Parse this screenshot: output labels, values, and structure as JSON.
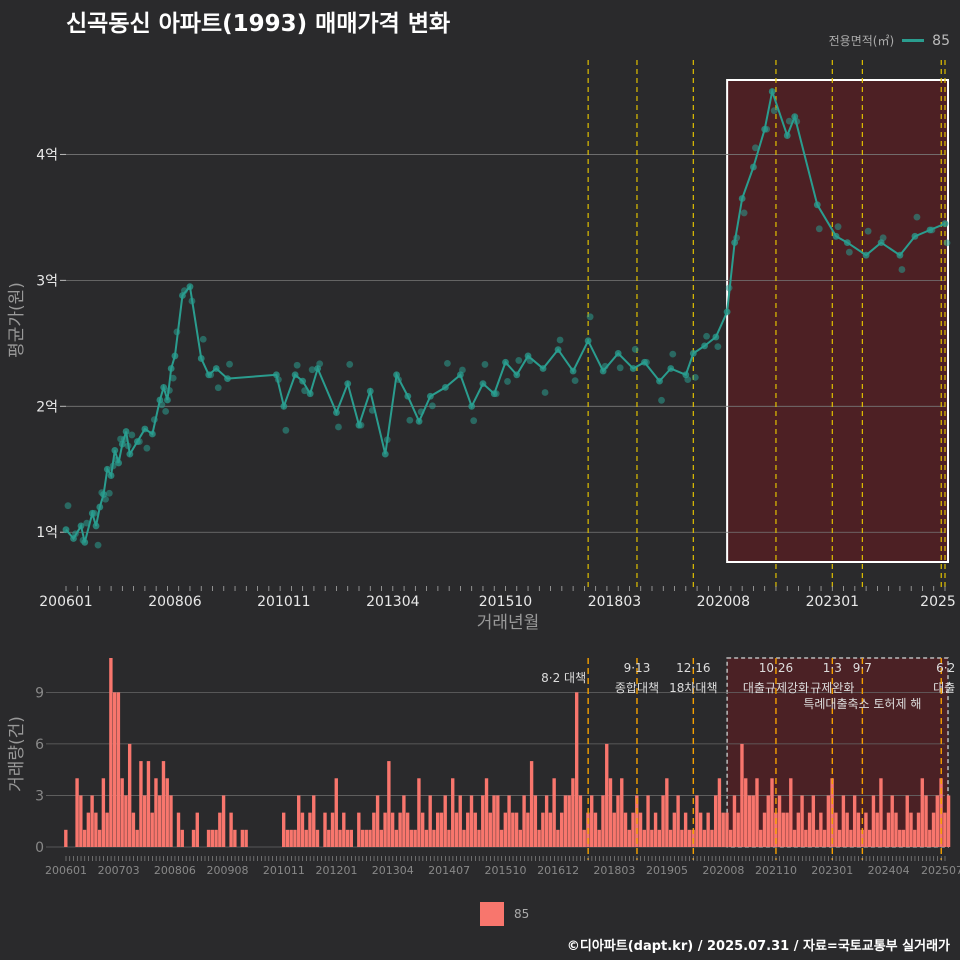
{
  "title": "신곡동신 아파트(1993) 매매가격 변화",
  "legend_top": {
    "title": "전용면적(㎡)",
    "series": "85",
    "color": "#2a9d8f"
  },
  "legend_bottom": {
    "series": "85",
    "color": "#f8766d"
  },
  "caption": "©디아파트(dapt.kr) / 2025.07.31 / 자료=국토교통부 실거래가",
  "colors": {
    "background": "#2a2a2c",
    "price": "#2a9d8f",
    "volume": "#f8766d",
    "policy_line": "#e0c000",
    "highlight": "#5a1e22"
  },
  "chart_data": [
    {
      "type": "line",
      "ylabel": "평균가(원)",
      "xlabel": "거래년월",
      "x_ticks": [
        "200601",
        "200806",
        "201011",
        "201304",
        "201510",
        "201803",
        "202008",
        "202301",
        "2025"
      ],
      "y_ticks": [
        "1억",
        "2억",
        "3억",
        "4억"
      ],
      "ylim": [
        0.7,
        4.75
      ],
      "highlight_range": [
        "2020-09",
        "2025-07"
      ],
      "policy_lines": [
        "2017-08",
        "2018-09",
        "2019-12",
        "2021-10",
        "2023-01",
        "2023-09",
        "2025-06",
        "2025-07"
      ],
      "series": [
        {
          "name": "85",
          "points": [
            [
              "2006-01",
              1.02
            ],
            [
              "2006-03",
              0.95
            ],
            [
              "2006-05",
              1.05
            ],
            [
              "2006-06",
              0.92
            ],
            [
              "2006-08",
              1.15
            ],
            [
              "2006-09",
              1.05
            ],
            [
              "2006-10",
              1.2
            ],
            [
              "2006-11",
              1.3
            ],
            [
              "2006-12",
              1.5
            ],
            [
              "2007-01",
              1.45
            ],
            [
              "2007-02",
              1.65
            ],
            [
              "2007-03",
              1.55
            ],
            [
              "2007-04",
              1.7
            ],
            [
              "2007-05",
              1.8
            ],
            [
              "2007-06",
              1.62
            ],
            [
              "2007-08",
              1.72
            ],
            [
              "2007-10",
              1.82
            ],
            [
              "2007-12",
              1.78
            ],
            [
              "2008-02",
              2.05
            ],
            [
              "2008-03",
              2.15
            ],
            [
              "2008-04",
              2.05
            ],
            [
              "2008-05",
              2.3
            ],
            [
              "2008-06",
              2.4
            ],
            [
              "2008-08",
              2.88
            ],
            [
              "2008-10",
              2.95
            ],
            [
              "2009-01",
              2.38
            ],
            [
              "2009-03",
              2.25
            ],
            [
              "2009-05",
              2.3
            ],
            [
              "2009-08",
              2.22
            ],
            [
              "2010-09",
              2.25
            ],
            [
              "2010-11",
              2.0
            ],
            [
              "2011-02",
              2.25
            ],
            [
              "2011-04",
              2.2
            ],
            [
              "2011-06",
              2.1
            ],
            [
              "2011-08",
              2.3
            ],
            [
              "2012-01",
              1.95
            ],
            [
              "2012-04",
              2.18
            ],
            [
              "2012-07",
              1.85
            ],
            [
              "2012-10",
              2.12
            ],
            [
              "2013-02",
              1.62
            ],
            [
              "2013-05",
              2.25
            ],
            [
              "2013-08",
              2.08
            ],
            [
              "2013-11",
              1.88
            ],
            [
              "2014-02",
              2.08
            ],
            [
              "2014-06",
              2.15
            ],
            [
              "2014-10",
              2.25
            ],
            [
              "2015-01",
              2.0
            ],
            [
              "2015-04",
              2.18
            ],
            [
              "2015-07",
              2.1
            ],
            [
              "2015-10",
              2.35
            ],
            [
              "2016-01",
              2.25
            ],
            [
              "2016-04",
              2.4
            ],
            [
              "2016-08",
              2.3
            ],
            [
              "2016-12",
              2.45
            ],
            [
              "2017-04",
              2.28
            ],
            [
              "2017-08",
              2.52
            ],
            [
              "2017-12",
              2.28
            ],
            [
              "2018-04",
              2.42
            ],
            [
              "2018-08",
              2.3
            ],
            [
              "2018-11",
              2.35
            ],
            [
              "2019-03",
              2.2
            ],
            [
              "2019-06",
              2.3
            ],
            [
              "2019-10",
              2.25
            ],
            [
              "2019-12",
              2.42
            ],
            [
              "2020-03",
              2.48
            ],
            [
              "2020-06",
              2.55
            ],
            [
              "2020-09",
              2.75
            ],
            [
              "2020-11",
              3.3
            ],
            [
              "2021-01",
              3.65
            ],
            [
              "2021-04",
              3.9
            ],
            [
              "2021-07",
              4.2
            ],
            [
              "2021-09",
              4.5
            ],
            [
              "2022-01",
              4.15
            ],
            [
              "2022-03",
              4.3
            ],
            [
              "2022-09",
              3.6
            ],
            [
              "2023-02",
              3.35
            ],
            [
              "2023-05",
              3.3
            ],
            [
              "2023-10",
              3.2
            ],
            [
              "2024-02",
              3.3
            ],
            [
              "2024-07",
              3.2
            ],
            [
              "2024-11",
              3.35
            ],
            [
              "2025-03",
              3.4
            ],
            [
              "2025-07",
              3.45
            ]
          ]
        }
      ]
    },
    {
      "type": "bar",
      "ylabel": "거래량(건)",
      "x_ticks": [
        "200601",
        "200703",
        "200806",
        "200908",
        "201011",
        "201201",
        "201304",
        "201407",
        "201510",
        "201612",
        "201803",
        "201905",
        "202008",
        "202110",
        "202301",
        "202404",
        "202507"
      ],
      "y_ticks": [
        "0",
        "3",
        "6",
        "9"
      ],
      "ylim": [
        0,
        11
      ],
      "highlight_range": [
        "2020-09",
        "2025-07"
      ],
      "policy_events": [
        {
          "month": "2017-08",
          "label": "8·2 대책"
        },
        {
          "month": "2018-09",
          "label": "9·13 종합대책"
        },
        {
          "month": "2019-12",
          "label": "12·16 18차대책"
        },
        {
          "month": "2021-10",
          "label": "10·26 대출규제강화"
        },
        {
          "month": "2023-01",
          "label": "1·3 규제완화"
        },
        {
          "month": "2023-09",
          "label": "9·7 특례대출축소 토허제 해"
        },
        {
          "month": "2025-06",
          "label": "6·2 대출"
        }
      ],
      "series": [
        {
          "name": "85",
          "start": "2006-01",
          "values": [
            1,
            0,
            0,
            4,
            3,
            1,
            2,
            3,
            2,
            1,
            4,
            2,
            11,
            9,
            9,
            4,
            3,
            6,
            2,
            1,
            5,
            3,
            5,
            2,
            4,
            3,
            5,
            4,
            3,
            0,
            2,
            1,
            0,
            0,
            1,
            2,
            0,
            0,
            1,
            1,
            1,
            2,
            3,
            0,
            2,
            1,
            0,
            1,
            1,
            0,
            0,
            0,
            0,
            0,
            0,
            0,
            0,
            0,
            2,
            1,
            1,
            1,
            3,
            2,
            1,
            2,
            3,
            1,
            0,
            2,
            1,
            2,
            4,
            1,
            2,
            1,
            1,
            0,
            2,
            1,
            1,
            1,
            2,
            3,
            1,
            2,
            5,
            2,
            1,
            2,
            3,
            2,
            1,
            1,
            4,
            2,
            1,
            3,
            1,
            2,
            2,
            3,
            1,
            4,
            2,
            3,
            1,
            2,
            3,
            2,
            1,
            3,
            4,
            2,
            3,
            3,
            1,
            2,
            3,
            2,
            2,
            1,
            3,
            2,
            5,
            3,
            1,
            2,
            3,
            2,
            4,
            1,
            2,
            3,
            3,
            4,
            9,
            3,
            1,
            2,
            3,
            2,
            1,
            3,
            6,
            4,
            2,
            3,
            4,
            2,
            1,
            2,
            3,
            2,
            1,
            3,
            1,
            2,
            1,
            3,
            4,
            1,
            2,
            3,
            1,
            2,
            1,
            1,
            3,
            2,
            1,
            2,
            1,
            3,
            4,
            2,
            2,
            1,
            3,
            2,
            6,
            4,
            3,
            3,
            4,
            1,
            2,
            3,
            4,
            2,
            3,
            2,
            2,
            4,
            1,
            2,
            3,
            1,
            2,
            3,
            1,
            2,
            1,
            3,
            4,
            2,
            1,
            3,
            2,
            1,
            3,
            2,
            1,
            2,
            1,
            3,
            2,
            4,
            1,
            2,
            3,
            2,
            1,
            1,
            3,
            2,
            1,
            2,
            4,
            3,
            1,
            2,
            3,
            4,
            2,
            3
          ]
        }
      ]
    }
  ]
}
